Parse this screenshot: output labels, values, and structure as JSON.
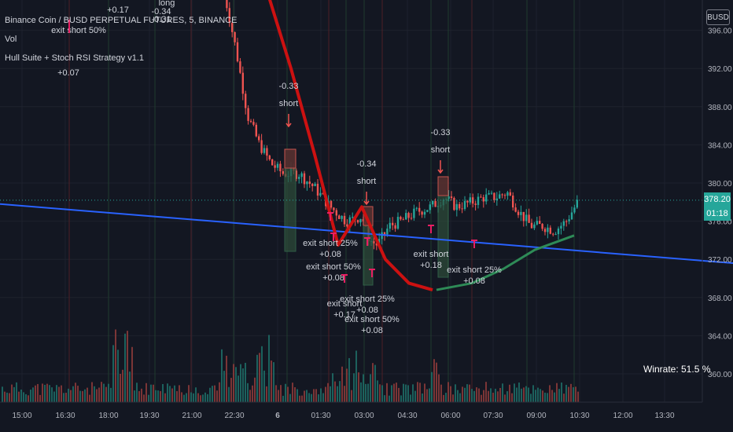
{
  "header": {
    "symbol_line": "Binance Coin / BUSD PERPETUAL FUTURES, 5, BINANCE",
    "indicators": [
      "Vol",
      "Hull Suite + Stoch RSI Strategy v1.1"
    ]
  },
  "symbol_button": "BUSD",
  "last_price": {
    "value": "378.20",
    "countdown": "01:18"
  },
  "winrate": "Winrate: 51.5 %",
  "colors": {
    "up": "#26a69a",
    "down": "#ef5350",
    "hull_down": "#cc1111",
    "hull_up": "#2e8b57",
    "trendline": "#2962ff",
    "signal": "#e91e63"
  },
  "chart_data": {
    "type": "candlestick",
    "timeframe": "5",
    "y_axis_labels": [
      "396.00",
      "392.00",
      "388.00",
      "384.00",
      "380.00",
      "376.00",
      "372.00",
      "368.00",
      "364.00",
      "360.00"
    ],
    "ylim": [
      357,
      400
    ],
    "x_axis_labels": [
      "15:00",
      "16:30",
      "18:00",
      "19:30",
      "21:00",
      "22:30",
      "6",
      "01:30",
      "03:00",
      "04:30",
      "06:00",
      "07:30",
      "09:00",
      "10:30",
      "12:00",
      "13:30"
    ],
    "trendline": {
      "start": [
        0,
        377.8
      ],
      "end": [
        932,
        371.6
      ]
    },
    "hull_red": [
      [
        340,
        400
      ],
      [
        370,
        392
      ],
      [
        400,
        383
      ],
      [
        430,
        373.5
      ],
      [
        460,
        377.5
      ],
      [
        490,
        372
      ],
      [
        520,
        369.5
      ],
      [
        550,
        368.8
      ]
    ],
    "hull_green": [
      [
        555,
        368.8
      ],
      [
        600,
        369.5
      ],
      [
        640,
        371
      ],
      [
        680,
        373
      ],
      [
        730,
        374.5
      ]
    ],
    "signals": [
      {
        "label": "-0.33",
        "type": "short"
      },
      {
        "label": "-0.34",
        "type": "short"
      },
      {
        "label": "-0.33",
        "type": "short"
      },
      {
        "label": "exit short 25%",
        "pnl": "+0.08"
      },
      {
        "label": "exit short 50%",
        "pnl": "+0.08"
      },
      {
        "label": "exit short",
        "pnl": "+0.17"
      },
      {
        "label": "exit short 25%",
        "pnl": "+0.08"
      },
      {
        "label": "exit short 50%",
        "pnl": "+0.08"
      },
      {
        "label": "exit short",
        "pnl": "+0.18"
      },
      {
        "label": "exit short 25%",
        "pnl": "+0.08"
      }
    ],
    "top_labels": [
      "exit short 50%",
      "+0.07",
      "+0.17",
      "long",
      "-0.34",
      "-0.31"
    ],
    "last_price": 378.2
  }
}
